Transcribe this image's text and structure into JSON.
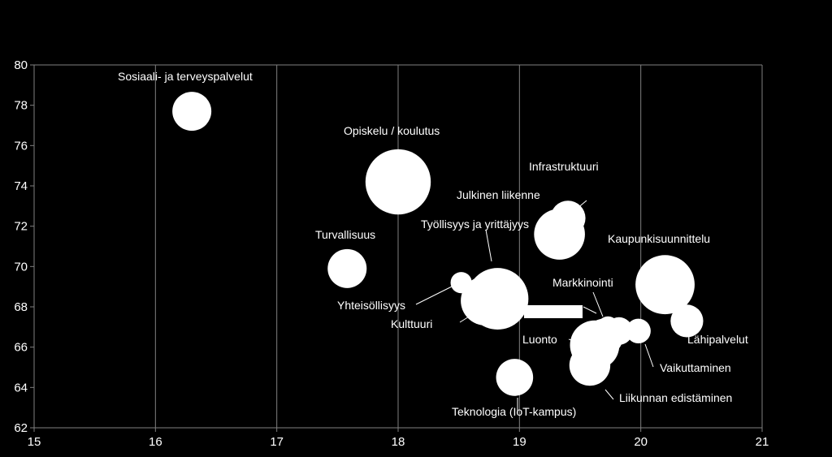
{
  "chart_data": {
    "type": "scatter",
    "title": "",
    "xlabel": "",
    "ylabel": "",
    "xlim": [
      15,
      21
    ],
    "ylim": [
      62,
      80
    ],
    "x_ticks": [
      "15",
      "16",
      "17",
      "18",
      "19",
      "20",
      "21"
    ],
    "y_ticks": [
      "62",
      "64",
      "66",
      "68",
      "70",
      "72",
      "74",
      "76",
      "78",
      "80"
    ],
    "grid": "vertical",
    "colors": {
      "background": "#000000",
      "plot": "#000000",
      "bubble": "#ffffff",
      "grid": "#808080",
      "text": "#ffffff"
    },
    "points": [
      {
        "name": "Sosiaali- ja terveyspalvelut",
        "x": 16.3,
        "y": 77.7,
        "size": 1.0
      },
      {
        "name": "Opiskelu / koulutus",
        "x": 18.0,
        "y": 74.2,
        "size": 2.8
      },
      {
        "name": "Infrastruktuuri",
        "x": 19.4,
        "y": 72.4,
        "size": 0.8
      },
      {
        "name": "Julkinen liikenne",
        "x": 19.33,
        "y": 71.6,
        "size": 1.7
      },
      {
        "name": "Työllisyys ja yrittäjyys",
        "x": 18.82,
        "y": 68.4,
        "size": 2.5
      },
      {
        "name": "Turvallisuus",
        "x": 17.58,
        "y": 69.9,
        "size": 1.0
      },
      {
        "name": "Kaupunkisuunnittelu",
        "x": 20.2,
        "y": 69.1,
        "size": 2.3
      },
      {
        "name": "Yhteisöllisyys",
        "x": 18.52,
        "y": 69.2,
        "size": 0.3
      },
      {
        "name": "Kulttuuri",
        "x": 18.72,
        "y": 68.3,
        "size": 1.6
      },
      {
        "name": "Markkinointi",
        "x": 19.73,
        "y": 67.0,
        "size": 0.3
      },
      {
        "name": "Lähipalvelut",
        "x": 20.38,
        "y": 67.3,
        "size": 0.7
      },
      {
        "name": "Vaikuttaminen",
        "x": 19.98,
        "y": 66.8,
        "size": 0.4
      },
      {
        "name": "Luonto",
        "x": 19.62,
        "y": 66.1,
        "size": 1.6
      },
      {
        "name": "Liikunnan edistäminen",
        "x": 19.58,
        "y": 65.1,
        "size": 1.1
      },
      {
        "name": "Teknologia (IoT-kampus)",
        "x": 18.96,
        "y": 64.5,
        "size": 0.9
      },
      {
        "name": "",
        "x": 19.82,
        "y": 66.8,
        "size": 0.5
      },
      {
        "name": "",
        "x": 19.7,
        "y": 66.5,
        "size": 0.9
      }
    ]
  }
}
